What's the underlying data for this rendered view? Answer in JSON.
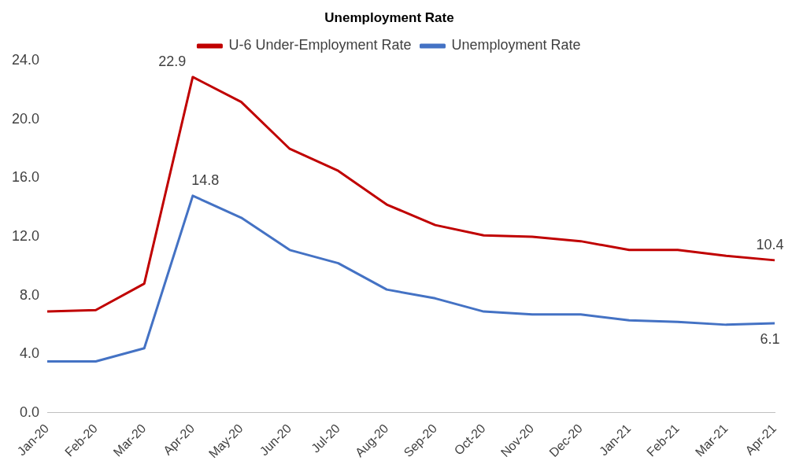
{
  "chart_data": {
    "type": "line",
    "title": "Unemployment Rate",
    "categories": [
      "Jan-20",
      "Feb-20",
      "Mar-20",
      "Apr-20",
      "May-20",
      "Jun-20",
      "Jul-20",
      "Aug-20",
      "Sep-20",
      "Oct-20",
      "Nov-20",
      "Dec-20",
      "Jan-21",
      "Feb-21",
      "Mar-21",
      "Apr-21"
    ],
    "series": [
      {
        "name": "U-6 Under-Employment Rate",
        "color": "#c00000",
        "values": [
          6.9,
          7.0,
          8.8,
          22.9,
          21.2,
          18.0,
          16.5,
          14.2,
          12.8,
          12.1,
          12.0,
          11.7,
          11.1,
          11.1,
          10.7,
          10.4
        ],
        "value_labels": [
          null,
          null,
          null,
          "22.9",
          null,
          null,
          null,
          null,
          null,
          null,
          null,
          null,
          null,
          null,
          null,
          "10.4"
        ]
      },
      {
        "name": "Unemployment Rate",
        "color": "#4472c4",
        "values": [
          3.5,
          3.5,
          4.4,
          14.8,
          13.3,
          11.1,
          10.2,
          8.4,
          7.8,
          6.9,
          6.7,
          6.7,
          6.3,
          6.2,
          6.0,
          6.1
        ],
        "value_labels": [
          null,
          null,
          null,
          "14.8",
          null,
          null,
          null,
          null,
          null,
          null,
          null,
          null,
          null,
          null,
          null,
          "6.1"
        ]
      }
    ],
    "ylim": [
      0,
      24
    ],
    "yticks": [
      {
        "value": 0,
        "label": "0.0"
      },
      {
        "value": 4,
        "label": "4.0"
      },
      {
        "value": 8,
        "label": "8.0"
      },
      {
        "value": 12,
        "label": "12.0"
      },
      {
        "value": 16,
        "label": "16.0"
      },
      {
        "value": 20,
        "label": "20.0"
      },
      {
        "value": 24,
        "label": "24.0"
      }
    ],
    "grid": false,
    "legend": "top",
    "marker": "none",
    "line_style": "solid"
  }
}
